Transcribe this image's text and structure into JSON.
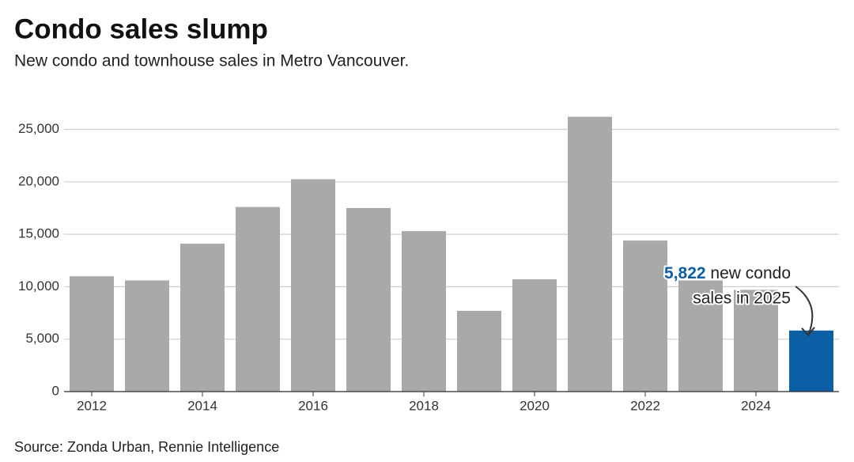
{
  "chart_data": {
    "type": "bar",
    "title": "Condo sales slump",
    "subtitle": "New condo and townhouse sales in Metro Vancouver.",
    "source": "Source: Zonda Urban, Rennie Intelligence",
    "categories": [
      "2012",
      null,
      "2014",
      null,
      "2016",
      null,
      "2018",
      null,
      "2020",
      null,
      "2022",
      null,
      "2024",
      null
    ],
    "values": [
      11000,
      10600,
      14100,
      17600,
      20250,
      17500,
      15300,
      7700,
      10700,
      26200,
      14400,
      10600,
      9700,
      5822
    ],
    "value_labels": [
      null,
      null,
      null,
      null,
      null,
      null,
      null,
      null,
      null,
      null,
      null,
      null,
      null,
      "5,822"
    ],
    "colors": [
      "#a7a9ab",
      "#a7a9ab",
      "#a7a9ab",
      "#a7a9ab",
      "#a7a9ab",
      "#a7a9ab",
      "#a7a9ab",
      "#a7a9ab",
      "#a7a9ab",
      "#a7a9ab",
      "#a7a9ab",
      "#a7a9ab",
      "#a7a9ab",
      "#0b5fa5"
    ],
    "annotation": [
      "new condo",
      "sales in 2025"
    ],
    "ylim": [
      0,
      27000
    ],
    "yticks": [
      0,
      {
        "value": 5000,
        "label": "5,000"
      },
      {
        "value": 10000,
        "label": "10,000"
      },
      {
        "value": 15000,
        "label": "15,000"
      },
      {
        "value": 20000,
        "label": "20,000"
      },
      {
        "value": 25000,
        "label": "25,000"
      }
    ],
    "grid": true
  }
}
